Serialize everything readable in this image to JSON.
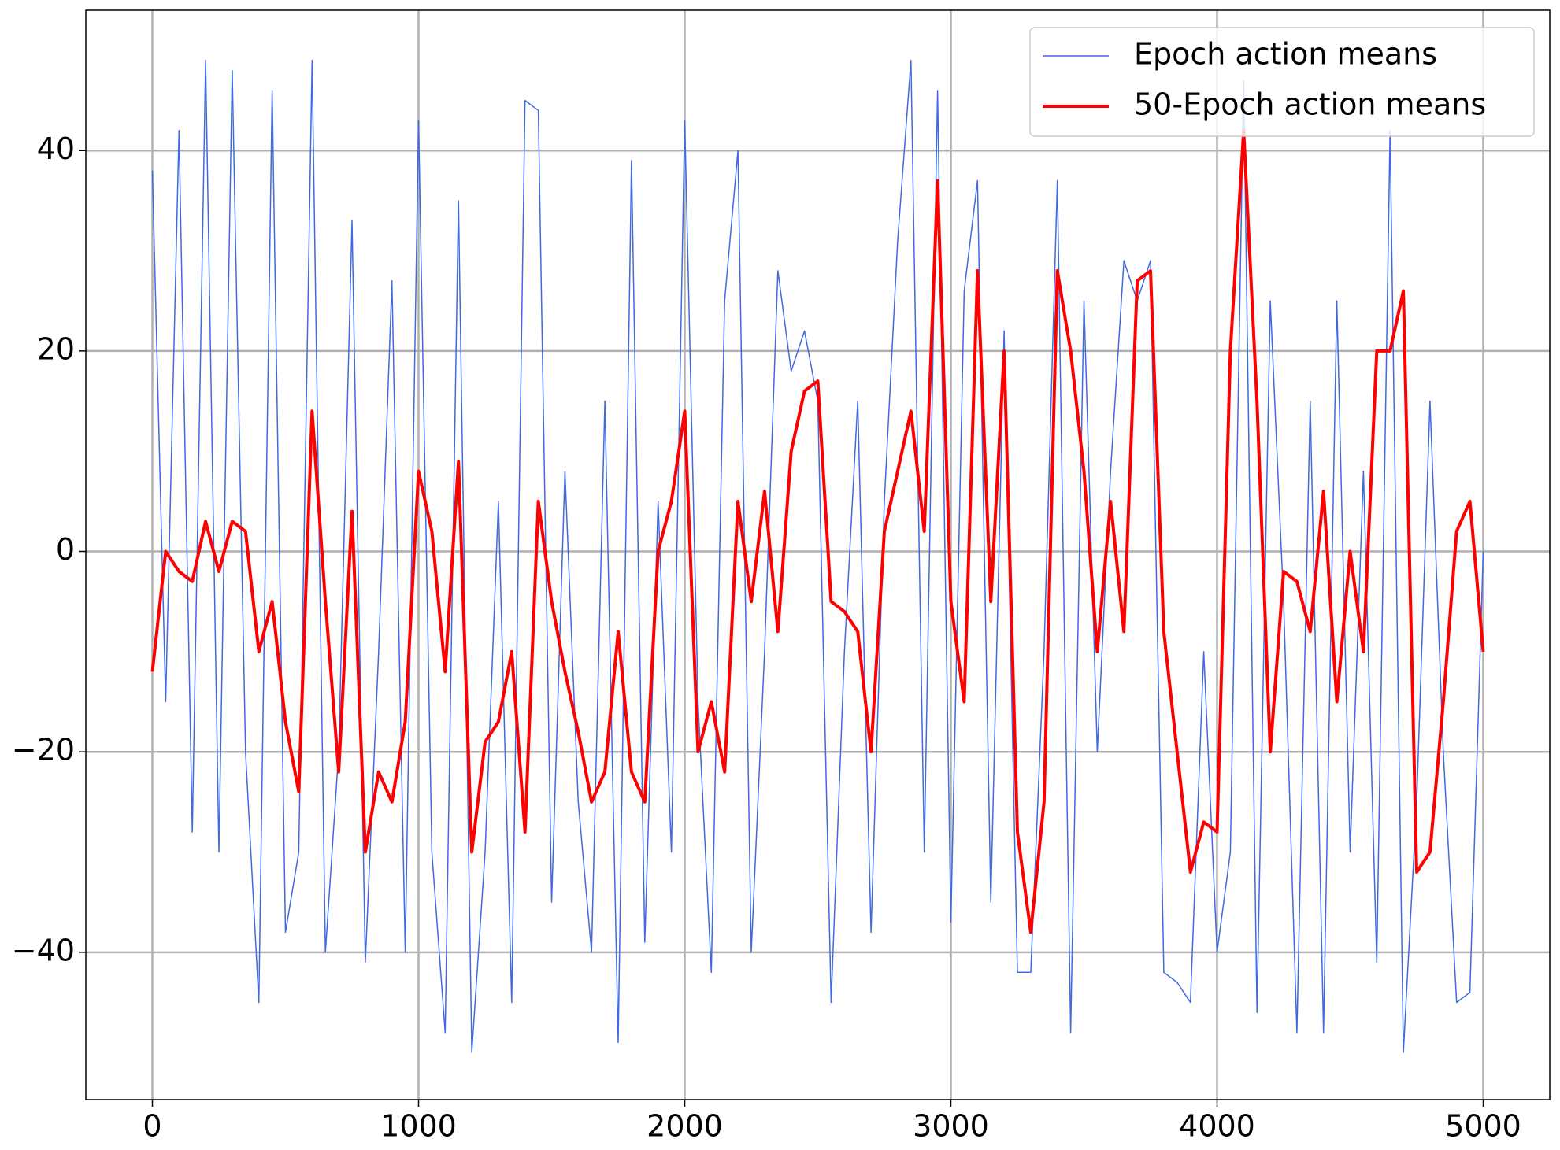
{
  "chart_data": {
    "type": "line",
    "x": [
      0,
      50,
      100,
      150,
      200,
      250,
      300,
      350,
      400,
      450,
      500,
      550,
      600,
      650,
      700,
      750,
      800,
      850,
      900,
      950,
      1000,
      1050,
      1100,
      1150,
      1200,
      1250,
      1300,
      1350,
      1400,
      1450,
      1500,
      1550,
      1600,
      1650,
      1700,
      1750,
      1800,
      1850,
      1900,
      1950,
      2000,
      2050,
      2100,
      2150,
      2200,
      2250,
      2300,
      2350,
      2400,
      2450,
      2500,
      2550,
      2600,
      2650,
      2700,
      2750,
      2800,
      2850,
      2900,
      2950,
      3000,
      3050,
      3100,
      3150,
      3200,
      3250,
      3300,
      3350,
      3400,
      3450,
      3500,
      3550,
      3600,
      3650,
      3700,
      3750,
      3800,
      3850,
      3900,
      3950,
      4000,
      4050,
      4100,
      4150,
      4200,
      4250,
      4300,
      4350,
      4400,
      4450,
      4500,
      4550,
      4600,
      4650,
      4700,
      4750,
      4800,
      4850,
      4900,
      4950,
      5000
    ],
    "series": [
      {
        "name": "Epoch action means",
        "color": "#4169e1",
        "width": 1.5,
        "values": [
          38,
          -15,
          42,
          -28,
          49,
          -30,
          48,
          -20,
          -45,
          46,
          -38,
          -30,
          49,
          -40,
          -20,
          33,
          -41,
          -10,
          27,
          -40,
          43,
          -30,
          -48,
          35,
          -50,
          -30,
          5,
          -45,
          45,
          44,
          -35,
          8,
          -25,
          -40,
          15,
          -49,
          39,
          -39,
          5,
          -30,
          43,
          -15,
          -42,
          25,
          40,
          -40,
          -10,
          28,
          18,
          22,
          15,
          -45,
          -10,
          15,
          -38,
          5,
          31,
          49,
          -30,
          46,
          -37,
          26,
          37,
          -35,
          22,
          -42,
          -42,
          -10,
          37,
          -48,
          25,
          -20,
          8,
          29,
          25,
          29,
          -42,
          -43,
          -45,
          -10,
          -40,
          -30,
          47,
          -46,
          25,
          -5,
          -48,
          15,
          -48,
          25,
          -30,
          8,
          -41,
          42,
          -50,
          -25,
          15,
          -20,
          -45,
          -44,
          0
        ]
      },
      {
        "name": "50-Epoch action means",
        "color": "#ff0000",
        "width": 4,
        "values": [
          -12,
          0,
          -2,
          -3,
          3,
          -2,
          3,
          2,
          -10,
          -5,
          -17,
          -24,
          14,
          -5,
          -22,
          4,
          -30,
          -22,
          -25,
          -17,
          8,
          2,
          -12,
          9,
          -30,
          -19,
          -17,
          -10,
          -28,
          5,
          -5,
          -12,
          -18,
          -25,
          -22,
          -8,
          -22,
          -25,
          0,
          5,
          14,
          -20,
          -15,
          -22,
          5,
          -5,
          6,
          -8,
          10,
          16,
          17,
          -5,
          -6,
          -8,
          -20,
          2,
          8,
          14,
          2,
          37,
          -5,
          -15,
          28,
          -5,
          20,
          -28,
          -38,
          -25,
          28,
          20,
          8,
          -10,
          5,
          -8,
          27,
          28,
          -8,
          -20,
          -32,
          -27,
          -28,
          20,
          42,
          15,
          -20,
          -2,
          -3,
          -8,
          6,
          -15,
          0,
          -10,
          20,
          20,
          26,
          -32,
          -30,
          -15,
          2,
          5,
          -10
        ]
      }
    ],
    "xlim": [
      -250,
      5250
    ],
    "ylim": [
      -54.7,
      54
    ],
    "xticks": [
      0,
      1000,
      2000,
      3000,
      4000,
      5000
    ],
    "yticks": [
      {
        "value": -40,
        "label": "−40"
      },
      {
        "value": -20,
        "label": "−20"
      },
      0,
      20,
      40
    ],
    "grid": true,
    "legend": "upper right"
  }
}
